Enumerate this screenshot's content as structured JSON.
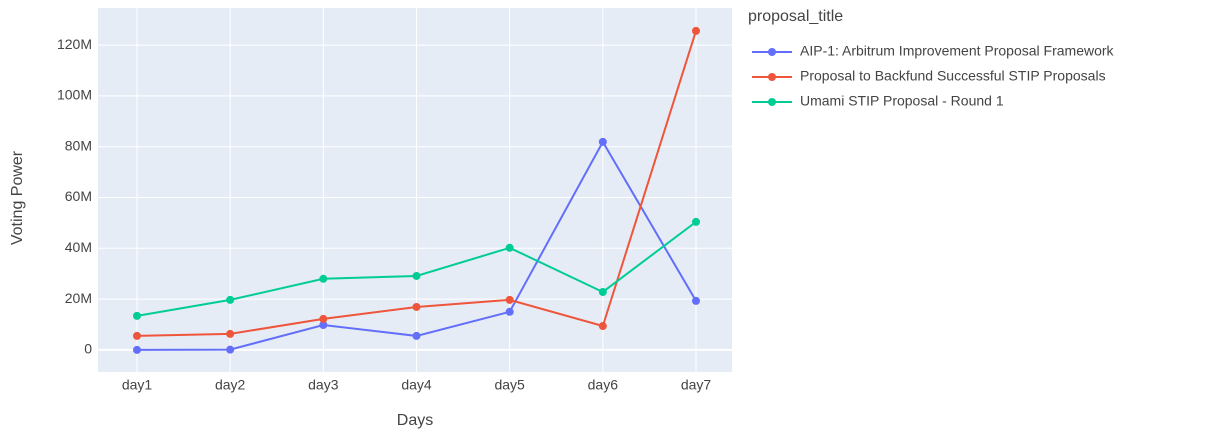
{
  "chart_data": {
    "type": "line",
    "x_label": "Days",
    "y_label": "Voting Power",
    "legend_title": "proposal_title",
    "legend_position": "right",
    "grid": true,
    "categories": [
      "day1",
      "day2",
      "day3",
      "day4",
      "day5",
      "day6",
      "day7"
    ],
    "ylim": [
      -8700000,
      134600000
    ],
    "yticks": [
      0,
      {
        "value": 20000000,
        "label": "20M"
      },
      {
        "value": 40000000,
        "label": "40M"
      },
      {
        "value": 60000000,
        "label": "60M"
      },
      {
        "value": 80000000,
        "label": "80M"
      },
      {
        "value": 100000000,
        "label": "100M"
      },
      {
        "value": 120000000,
        "label": "120M"
      }
    ],
    "series": [
      {
        "name": "AIP-1: Arbitrum Improvement Proposal Framework",
        "color": "#636efa",
        "values": [
          0,
          100000,
          9800000,
          5500000,
          15000000,
          81900000,
          19300000
        ]
      },
      {
        "name": "Proposal to Backfund Successful STIP Proposals",
        "color": "#ef553b",
        "values": [
          5500000,
          6300000,
          12200000,
          16900000,
          19700000,
          9400000,
          125600000
        ]
      },
      {
        "name": "Umami STIP Proposal - Round 1",
        "color": "#00cc96",
        "values": [
          13400000,
          19700000,
          28000000,
          29100000,
          40200000,
          22800000,
          50400000
        ]
      }
    ]
  }
}
